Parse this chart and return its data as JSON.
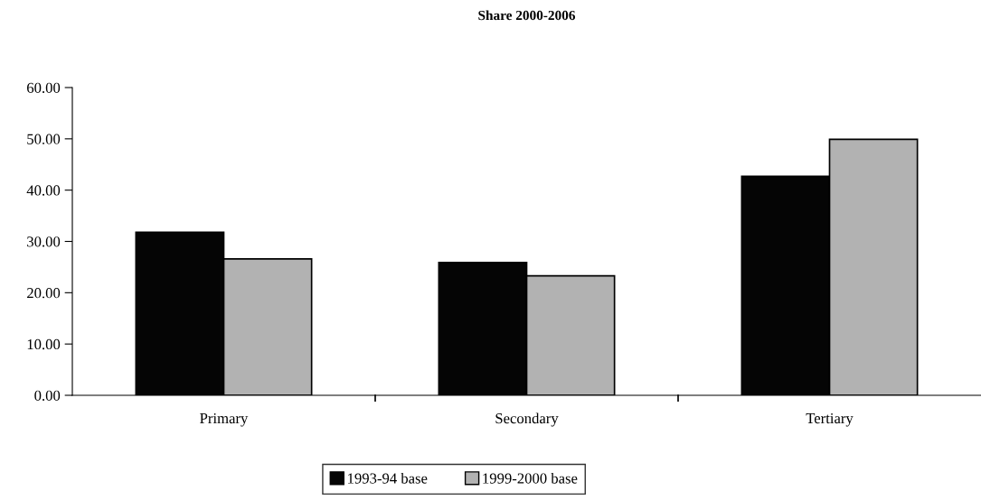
{
  "chart_data": {
    "type": "bar",
    "title": "Share 2000-2006",
    "categories": [
      "Primary",
      "Secondary",
      "Tertiary"
    ],
    "series": [
      {
        "name": "1993-94 base",
        "color": "#050505",
        "values": [
          31.8,
          25.9,
          42.7
        ]
      },
      {
        "name": "1999-2000 base",
        "color": "#b2b2b2",
        "values": [
          26.6,
          23.3,
          49.9
        ]
      }
    ],
    "ylim": [
      0,
      60
    ],
    "yticks": [
      {
        "value": 0,
        "label": "0.00"
      },
      {
        "value": 10,
        "label": "10.00"
      },
      {
        "value": 20,
        "label": "20.00"
      },
      {
        "value": 30,
        "label": "30.00"
      },
      {
        "value": 40,
        "label": "40.00"
      },
      {
        "value": 50,
        "label": "50.00"
      },
      {
        "value": 60,
        "label": "60.00"
      }
    ],
    "grid": false,
    "legend": "bottom"
  }
}
